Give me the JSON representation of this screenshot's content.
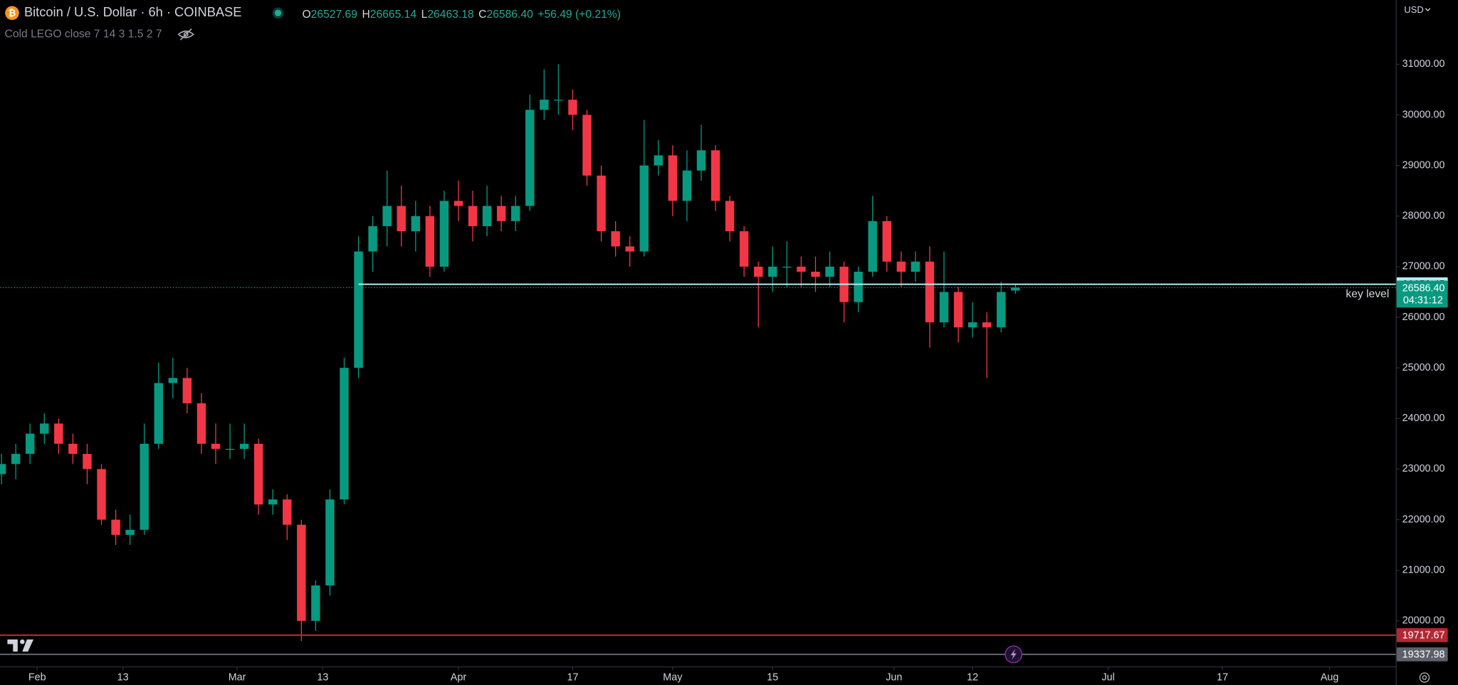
{
  "header": {
    "title": "Bitcoin / U.S. Dollar · 6h · COINBASE",
    "O": "26527.69",
    "H": "26665.14",
    "L": "26463.18",
    "C": "26586.40",
    "change": "+56.49 (+0.21%)",
    "indicator": "Cold LEGO close 7 14 3 1.5 2 7",
    "currency": "USD",
    "countdown": "04:31:12"
  },
  "chart_data": {
    "type": "candlestick",
    "up_color": "#089981",
    "down_color": "#f23645",
    "x": [
      0,
      2,
      4,
      6,
      8,
      10,
      12,
      14,
      16,
      18,
      20,
      22,
      24,
      26,
      28,
      30,
      32,
      34,
      36,
      38,
      40,
      42,
      44,
      46,
      48,
      50,
      52,
      54,
      56,
      58,
      60,
      62,
      64,
      66,
      68,
      70,
      72,
      74,
      76,
      78,
      80,
      82,
      84,
      86,
      88,
      90,
      92,
      94,
      96,
      98,
      100,
      102,
      104,
      106,
      108,
      110,
      112,
      114,
      116,
      118,
      120,
      122,
      124,
      126,
      128,
      130,
      132,
      134,
      136,
      138,
      140,
      142
    ],
    "open": [
      22900,
      23100,
      23300,
      23700,
      23900,
      23500,
      23300,
      23000,
      22000,
      21700,
      21800,
      23500,
      24700,
      24800,
      24300,
      23500,
      23400,
      23400,
      23500,
      22300,
      22400,
      21900,
      20000,
      20700,
      22400,
      25000,
      27300,
      27800,
      28200,
      27700,
      28000,
      27000,
      28300,
      28200,
      27800,
      28200,
      27900,
      28200,
      30100,
      30300,
      30300,
      30000,
      28800,
      27700,
      27400,
      27300,
      29000,
      29200,
      28300,
      28900,
      29300,
      28300,
      27700,
      27000,
      26800,
      27000,
      27000,
      26900,
      26800,
      27000,
      26300,
      26900,
      27900,
      27100,
      26900,
      27100,
      25900,
      26500,
      25800,
      25900,
      25800,
      26527.69
    ],
    "high": [
      23300,
      23500,
      23900,
      24100,
      24000,
      23700,
      23500,
      23100,
      22200,
      22100,
      23900,
      25100,
      25200,
      25000,
      24500,
      23900,
      23900,
      23900,
      23600,
      22600,
      22500,
      22000,
      20800,
      22600,
      25200,
      27600,
      28000,
      28900,
      28600,
      28300,
      28200,
      28500,
      28700,
      28500,
      28600,
      28400,
      28400,
      30400,
      30900,
      31000,
      30500,
      30100,
      29000,
      27900,
      27600,
      29900,
      29500,
      29400,
      29300,
      29800,
      29400,
      28400,
      27800,
      27100,
      27400,
      27500,
      27200,
      27200,
      27300,
      27100,
      27000,
      28400,
      28000,
      27300,
      27300,
      27400,
      27300,
      26600,
      26300,
      26100,
      26700,
      26665.14
    ],
    "low": [
      22700,
      22800,
      23100,
      23500,
      23300,
      23100,
      22700,
      21900,
      21500,
      21500,
      21700,
      23400,
      24400,
      24100,
      23300,
      23100,
      23200,
      23200,
      22100,
      22100,
      21600,
      19600,
      19800,
      20500,
      22300,
      24800,
      26900,
      27400,
      27400,
      27300,
      26800,
      26900,
      27900,
      27500,
      27600,
      27700,
      27700,
      28100,
      29900,
      30000,
      29700,
      28600,
      27500,
      27200,
      27000,
      27200,
      28800,
      28000,
      27900,
      28700,
      28100,
      27500,
      26800,
      25800,
      26500,
      26600,
      26600,
      26500,
      26600,
      25900,
      26100,
      26800,
      26900,
      26600,
      26700,
      25400,
      25800,
      25500,
      25600,
      24800,
      25700,
      26463.18
    ],
    "close": [
      23100,
      23300,
      23700,
      23900,
      23500,
      23300,
      23000,
      22000,
      21700,
      21800,
      23500,
      24700,
      24800,
      24300,
      23500,
      23400,
      23400,
      23500,
      22300,
      22400,
      21900,
      20000,
      20700,
      22400,
      25000,
      27300,
      27800,
      28200,
      27700,
      28000,
      27000,
      28300,
      28200,
      27800,
      28200,
      27900,
      28200,
      30100,
      30300,
      30300,
      30000,
      28800,
      27700,
      27400,
      27300,
      29000,
      29200,
      28300,
      28900,
      29300,
      28300,
      27700,
      27000,
      26800,
      27000,
      27000,
      26900,
      26800,
      27000,
      26300,
      26900,
      27900,
      27100,
      26900,
      27100,
      25900,
      26500,
      25800,
      25900,
      25800,
      26500,
      26586.4
    ],
    "xlim": [
      0,
      195
    ],
    "ylim": [
      19100,
      32270
    ],
    "xticks": [
      {
        "value": 5,
        "label": "Feb"
      },
      {
        "value": 17,
        "label": "13"
      },
      {
        "value": 33,
        "label": "Mar"
      },
      {
        "value": 45,
        "label": "13"
      },
      {
        "value": 64,
        "label": "Apr"
      },
      {
        "value": 80,
        "label": "17"
      },
      {
        "value": 94,
        "label": "May"
      },
      {
        "value": 108,
        "label": "15"
      },
      {
        "value": 125,
        "label": "Jun"
      },
      {
        "value": 136,
        "label": "12"
      },
      {
        "value": 155,
        "label": "Jul"
      },
      {
        "value": 171,
        "label": "17"
      },
      {
        "value": 186,
        "label": "Aug"
      }
    ],
    "yticks": [
      {
        "value": 20000,
        "label": "20000.00"
      },
      {
        "value": 21000,
        "label": "21000.00"
      },
      {
        "value": 22000,
        "label": "22000.00"
      },
      {
        "value": 23000,
        "label": "23000.00"
      },
      {
        "value": 24000,
        "label": "24000.00"
      },
      {
        "value": 25000,
        "label": "25000.00"
      },
      {
        "value": 26000,
        "label": "26000.00"
      },
      {
        "value": 27000,
        "label": "27000.00"
      },
      {
        "value": 28000,
        "label": "28000.00"
      },
      {
        "value": 29000,
        "label": "29000.00"
      },
      {
        "value": 30000,
        "label": "30000.00"
      },
      {
        "value": 31000,
        "label": "31000.00"
      }
    ],
    "hlines": [
      {
        "value": 26652.45,
        "x0": 50,
        "color": "#b2ebf2",
        "text": "key level"
      },
      {
        "value": 19717.67,
        "color": "#b22833"
      },
      {
        "value": 19337.98,
        "color": "#5d606b"
      }
    ]
  }
}
